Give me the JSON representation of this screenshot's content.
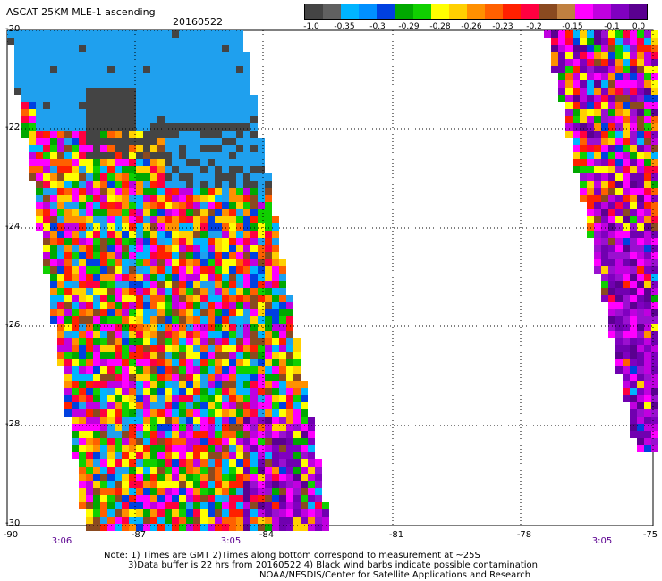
{
  "title": "ASCAT 25KM MLE-1 ascending",
  "date": "20160522",
  "colorbar": {
    "colors": [
      "#444444",
      "#606060",
      "#00b4ff",
      "#0090ff",
      "#0040e0",
      "#00a800",
      "#10d000",
      "#ffff00",
      "#ffd000",
      "#ff9000",
      "#ff6000",
      "#ff2000",
      "#ff0040",
      "#8a4a20",
      "#c08040",
      "#ff00ff",
      "#c000e0",
      "#8000c0",
      "#5a0090"
    ],
    "labels": [
      "-1.0",
      "-0.35",
      "-0.3",
      "-0.29",
      "-0.28",
      "-0.26",
      "-0.23",
      "-0.2",
      "-0.15",
      "-0.1",
      "0.0"
    ]
  },
  "axes": {
    "lat_labels": [
      "-20",
      "-22",
      "-24",
      "-26",
      "-28",
      "-30"
    ],
    "lon_labels": [
      "-90",
      "-87",
      "-84",
      "-81",
      "-78",
      "-75"
    ],
    "lat_range": [
      -30,
      -20
    ],
    "lon_range": [
      -90,
      -75
    ],
    "grid": "dotted"
  },
  "time_labels": [
    "3:06",
    "3:05",
    "3:05"
  ],
  "notes": [
    "Note: 1) Times are GMT 2)Times along bottom correspond to measurement at ~25S",
    "3)Data buffer is 22 hrs from 20160522 4) Black wind barbs indicate possible contamination",
    "NOAA/NESDIS/Center for Satellite Applications and Research"
  ]
}
